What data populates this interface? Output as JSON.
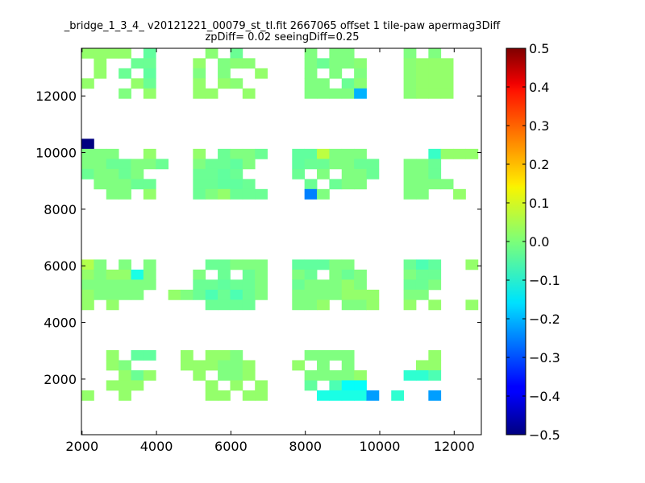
{
  "chart_data": {
    "type": "heatmap",
    "title_lines": [
      "_bridge_1_3_4_ v20121221_00079_st_tl.fit 2667065 offset 1 tile-paw apermag3Diff",
      "zpDiff= 0.02 seeingDiff=0.25"
    ],
    "xlabel": "",
    "ylabel": "",
    "xlim": [
      1983,
      12730
    ],
    "ylim": [
      36,
      13683
    ],
    "cell_width": 333,
    "cell_height": 355,
    "x_ticks": [
      2000,
      4000,
      6000,
      8000,
      10000,
      12000
    ],
    "y_ticks": [
      2000,
      4000,
      6000,
      8000,
      10000,
      12000
    ],
    "colorbar": {
      "colormap": "jet",
      "vmin": -0.5,
      "vmax": 0.5,
      "ticks": [
        "0.5",
        "0.4",
        "0.3",
        "0.2",
        "0.1",
        "0.0",
        "−0.1",
        "−0.2",
        "−0.3",
        "−0.4",
        "−0.5"
      ]
    },
    "cells": [
      [
        2150,
        13510,
        0.02
      ],
      [
        2483,
        13510,
        0.02
      ],
      [
        2816,
        13510,
        0.02
      ],
      [
        3149,
        13510,
        0.02
      ],
      [
        3815,
        13510,
        -0.03
      ],
      [
        5480,
        13510,
        0.01
      ],
      [
        6146,
        13510,
        -0.02
      ],
      [
        8144,
        13510,
        0.0
      ],
      [
        8810,
        13510,
        0.0
      ],
      [
        9143,
        13510,
        0.0
      ],
      [
        10808,
        13510,
        0.0
      ],
      [
        11474,
        13510,
        0.0
      ],
      [
        2483,
        13155,
        0.02
      ],
      [
        3482,
        13155,
        -0.02
      ],
      [
        3815,
        13155,
        -0.02
      ],
      [
        5147,
        13155,
        0.02
      ],
      [
        5813,
        13155,
        0.0
      ],
      [
        6146,
        13155,
        0.01
      ],
      [
        6479,
        13155,
        0.01
      ],
      [
        8144,
        13155,
        0.0
      ],
      [
        8477,
        13155,
        -0.02
      ],
      [
        8810,
        13155,
        0.0
      ],
      [
        9143,
        13155,
        0.0
      ],
      [
        9476,
        13155,
        0.01
      ],
      [
        10808,
        13155,
        0.01
      ],
      [
        11141,
        13155,
        0.02
      ],
      [
        11474,
        13155,
        0.02
      ],
      [
        11807,
        13155,
        0.02
      ],
      [
        2483,
        12800,
        0.02
      ],
      [
        3149,
        12800,
        -0.02
      ],
      [
        3815,
        12800,
        -0.03
      ],
      [
        5147,
        12800,
        0.0
      ],
      [
        5813,
        12800,
        0.0
      ],
      [
        6812,
        12800,
        0.02
      ],
      [
        8144,
        12800,
        0.0
      ],
      [
        8810,
        12800,
        0.0
      ],
      [
        9476,
        12800,
        0.0
      ],
      [
        10808,
        12800,
        0.01
      ],
      [
        11141,
        12800,
        0.02
      ],
      [
        11474,
        12800,
        0.02
      ],
      [
        11807,
        12800,
        0.02
      ],
      [
        2150,
        12445,
        0.02
      ],
      [
        3482,
        12445,
        0.02
      ],
      [
        3815,
        12445,
        -0.02
      ],
      [
        5147,
        12445,
        0.02
      ],
      [
        5813,
        12445,
        0.02
      ],
      [
        6146,
        12445,
        0.01
      ],
      [
        8144,
        12445,
        0.0
      ],
      [
        8477,
        12445,
        0.0
      ],
      [
        9143,
        12445,
        -0.02
      ],
      [
        9476,
        12445,
        0.01
      ],
      [
        10808,
        12445,
        0.01
      ],
      [
        11141,
        12445,
        0.02
      ],
      [
        11474,
        12445,
        0.02
      ],
      [
        11807,
        12445,
        0.02
      ],
      [
        3149,
        12090,
        0.0
      ],
      [
        3815,
        12090,
        0.02
      ],
      [
        5147,
        12090,
        0.02
      ],
      [
        5480,
        12090,
        0.02
      ],
      [
        6479,
        12090,
        0.02
      ],
      [
        8144,
        12090,
        0.0
      ],
      [
        8477,
        12090,
        0.0
      ],
      [
        8810,
        12090,
        0.0
      ],
      [
        9143,
        12090,
        0.0
      ],
      [
        9476,
        12090,
        -0.2
      ],
      [
        10808,
        12090,
        0.01
      ],
      [
        11141,
        12090,
        0.02
      ],
      [
        11474,
        12090,
        0.02
      ],
      [
        11807,
        12090,
        0.02
      ],
      [
        2150,
        10310,
        -0.5
      ],
      [
        2150,
        9955,
        0.0
      ],
      [
        2483,
        9955,
        0.0
      ],
      [
        2816,
        9955,
        0.0
      ],
      [
        3815,
        9955,
        0.02
      ],
      [
        5147,
        9955,
        0.02
      ],
      [
        5813,
        9955,
        -0.02
      ],
      [
        6146,
        9955,
        0.0
      ],
      [
        6479,
        9955,
        0.0
      ],
      [
        6812,
        9955,
        -0.02
      ],
      [
        7811,
        9955,
        -0.03
      ],
      [
        8144,
        9955,
        -0.03
      ],
      [
        8477,
        9955,
        0.06
      ],
      [
        8810,
        9955,
        0.0
      ],
      [
        9143,
        9955,
        0.0
      ],
      [
        9476,
        9955,
        0.0
      ],
      [
        11474,
        9955,
        -0.07
      ],
      [
        11807,
        9955,
        0.02
      ],
      [
        12140,
        9955,
        0.02
      ],
      [
        12473,
        9955,
        0.02
      ],
      [
        2150,
        9600,
        0.0
      ],
      [
        2483,
        9600,
        0.0
      ],
      [
        2816,
        9600,
        -0.02
      ],
      [
        3149,
        9600,
        -0.02
      ],
      [
        3482,
        9600,
        0.0
      ],
      [
        3815,
        9600,
        0.0
      ],
      [
        4148,
        9600,
        -0.02
      ],
      [
        5147,
        9600,
        0.0
      ],
      [
        5480,
        9600,
        -0.02
      ],
      [
        5813,
        9600,
        -0.02
      ],
      [
        6146,
        9600,
        -0.03
      ],
      [
        6479,
        9600,
        0.0
      ],
      [
        7811,
        9600,
        -0.03
      ],
      [
        8144,
        9600,
        -0.02
      ],
      [
        8477,
        9600,
        -0.02
      ],
      [
        8810,
        9600,
        0.0
      ],
      [
        9143,
        9600,
        0.0
      ],
      [
        9476,
        9600,
        -0.02
      ],
      [
        9809,
        9600,
        -0.02
      ],
      [
        10808,
        9600,
        0.0
      ],
      [
        11141,
        9600,
        0.0
      ],
      [
        11474,
        9600,
        -0.02
      ],
      [
        2150,
        9245,
        -0.02
      ],
      [
        2483,
        9245,
        0.0
      ],
      [
        2816,
        9245,
        0.0
      ],
      [
        3149,
        9245,
        -0.02
      ],
      [
        3482,
        9245,
        0.0
      ],
      [
        5147,
        9245,
        -0.02
      ],
      [
        5480,
        9245,
        -0.02
      ],
      [
        5813,
        9245,
        -0.03
      ],
      [
        6146,
        9245,
        -0.02
      ],
      [
        7811,
        9245,
        -0.02
      ],
      [
        8477,
        9245,
        0.0
      ],
      [
        9143,
        9245,
        0.0
      ],
      [
        9476,
        9245,
        0.0
      ],
      [
        9809,
        9245,
        -0.02
      ],
      [
        10808,
        9245,
        0.0
      ],
      [
        11141,
        9245,
        0.0
      ],
      [
        11474,
        9245,
        -0.02
      ],
      [
        2483,
        8890,
        0.0
      ],
      [
        2816,
        8890,
        0.0
      ],
      [
        3149,
        8890,
        0.0
      ],
      [
        3482,
        8890,
        -0.02
      ],
      [
        3815,
        8890,
        -0.02
      ],
      [
        5147,
        8890,
        -0.02
      ],
      [
        5480,
        8890,
        -0.02
      ],
      [
        5813,
        8890,
        -0.03
      ],
      [
        6146,
        8890,
        -0.03
      ],
      [
        6479,
        8890,
        -0.02
      ],
      [
        8144,
        8890,
        -0.02
      ],
      [
        8810,
        8890,
        -0.02
      ],
      [
        9143,
        8890,
        0.0
      ],
      [
        9476,
        8890,
        0.0
      ],
      [
        10808,
        8890,
        0.0
      ],
      [
        11141,
        8890,
        0.0
      ],
      [
        11474,
        8890,
        0.0
      ],
      [
        11807,
        8890,
        0.0
      ],
      [
        2816,
        8535,
        0.0
      ],
      [
        3149,
        8535,
        0.0
      ],
      [
        3815,
        8535,
        0.02
      ],
      [
        5147,
        8535,
        -0.02
      ],
      [
        5480,
        8535,
        0.0
      ],
      [
        5813,
        8535,
        0.02
      ],
      [
        6146,
        8535,
        -0.02
      ],
      [
        6479,
        8535,
        -0.02
      ],
      [
        6812,
        8535,
        -0.02
      ],
      [
        8144,
        8535,
        -0.25
      ],
      [
        8477,
        8535,
        0.0
      ],
      [
        10808,
        8535,
        0.0
      ],
      [
        11141,
        8535,
        0.0
      ],
      [
        12140,
        8535,
        0.02
      ],
      [
        2150,
        6045,
        0.05
      ],
      [
        2483,
        6045,
        0.0
      ],
      [
        3149,
        6045,
        0.0
      ],
      [
        3815,
        6045,
        0.0
      ],
      [
        5480,
        6045,
        -0.02
      ],
      [
        5813,
        6045,
        -0.02
      ],
      [
        6146,
        6045,
        0.0
      ],
      [
        6479,
        6045,
        0.0
      ],
      [
        6812,
        6045,
        0.0
      ],
      [
        7811,
        6045,
        -0.03
      ],
      [
        8144,
        6045,
        -0.03
      ],
      [
        8477,
        6045,
        -0.03
      ],
      [
        8810,
        6045,
        0.0
      ],
      [
        9143,
        6045,
        0.0
      ],
      [
        10808,
        6045,
        -0.02
      ],
      [
        11141,
        6045,
        -0.05
      ],
      [
        11474,
        6045,
        -0.03
      ],
      [
        12473,
        6045,
        0.02
      ],
      [
        2150,
        5690,
        0.02
      ],
      [
        2483,
        5690,
        0.0
      ],
      [
        2816,
        5690,
        0.02
      ],
      [
        3149,
        5690,
        0.02
      ],
      [
        3482,
        5690,
        -0.1
      ],
      [
        3815,
        5690,
        0.0
      ],
      [
        5147,
        5690,
        0.0
      ],
      [
        5813,
        5690,
        -0.02
      ],
      [
        6479,
        5690,
        -0.02
      ],
      [
        6812,
        5690,
        0.0
      ],
      [
        7811,
        5690,
        0.0
      ],
      [
        8144,
        5690,
        -0.02
      ],
      [
        8810,
        5690,
        0.0
      ],
      [
        9143,
        5690,
        -0.02
      ],
      [
        9476,
        5690,
        0.0
      ],
      [
        10808,
        5690,
        0.0
      ],
      [
        11141,
        5690,
        -0.02
      ],
      [
        11474,
        5690,
        -0.02
      ],
      [
        2150,
        5335,
        0.0
      ],
      [
        2483,
        5335,
        0.0
      ],
      [
        2816,
        5335,
        0.0
      ],
      [
        3149,
        5335,
        0.0
      ],
      [
        3482,
        5335,
        0.0
      ],
      [
        3815,
        5335,
        0.0
      ],
      [
        5147,
        5335,
        -0.02
      ],
      [
        5480,
        5335,
        -0.02
      ],
      [
        5813,
        5335,
        -0.03
      ],
      [
        6146,
        5335,
        -0.02
      ],
      [
        6479,
        5335,
        -0.02
      ],
      [
        6812,
        5335,
        0.0
      ],
      [
        7811,
        5335,
        -0.02
      ],
      [
        8144,
        5335,
        0.0
      ],
      [
        8477,
        5335,
        0.0
      ],
      [
        8810,
        5335,
        0.0
      ],
      [
        9143,
        5335,
        0.02
      ],
      [
        9476,
        5335,
        0.0
      ],
      [
        10808,
        5335,
        -0.02
      ],
      [
        11141,
        5335,
        -0.02
      ],
      [
        11474,
        5335,
        0.0
      ],
      [
        2150,
        4980,
        0.02
      ],
      [
        2483,
        4980,
        0.0
      ],
      [
        2816,
        4980,
        0.0
      ],
      [
        3149,
        4980,
        0.0
      ],
      [
        3482,
        4980,
        0.0
      ],
      [
        4481,
        4980,
        0.02
      ],
      [
        4814,
        4980,
        0.0
      ],
      [
        5147,
        4980,
        -0.02
      ],
      [
        5480,
        4980,
        -0.05
      ],
      [
        5813,
        4980,
        -0.02
      ],
      [
        6146,
        4980,
        -0.05
      ],
      [
        6479,
        4980,
        -0.02
      ],
      [
        6812,
        4980,
        0.0
      ],
      [
        7811,
        4980,
        0.0
      ],
      [
        8144,
        4980,
        0.0
      ],
      [
        8477,
        4980,
        0.0
      ],
      [
        8810,
        4980,
        0.0
      ],
      [
        9143,
        4980,
        0.02
      ],
      [
        9476,
        4980,
        0.02
      ],
      [
        9809,
        4980,
        0.02
      ],
      [
        10808,
        4980,
        0.0
      ],
      [
        11141,
        4980,
        0.0
      ],
      [
        2150,
        4625,
        0.02
      ],
      [
        2816,
        4625,
        0.02
      ],
      [
        5480,
        4625,
        -0.02
      ],
      [
        5813,
        4625,
        -0.02
      ],
      [
        6146,
        4625,
        -0.02
      ],
      [
        6479,
        4625,
        -0.02
      ],
      [
        7811,
        4625,
        0.0
      ],
      [
        8144,
        4625,
        0.0
      ],
      [
        8477,
        4625,
        0.02
      ],
      [
        9143,
        4625,
        0.0
      ],
      [
        9476,
        4625,
        0.0
      ],
      [
        9809,
        4625,
        0.02
      ],
      [
        10808,
        4625,
        0.02
      ],
      [
        11474,
        4625,
        0.02
      ],
      [
        12473,
        4625,
        0.02
      ],
      [
        2816,
        2845,
        0.02
      ],
      [
        3482,
        2845,
        -0.03
      ],
      [
        3815,
        2845,
        -0.03
      ],
      [
        4814,
        2845,
        0.02
      ],
      [
        5480,
        2845,
        0.02
      ],
      [
        5813,
        2845,
        0.02
      ],
      [
        6146,
        2845,
        0.0
      ],
      [
        8144,
        2845,
        0.0
      ],
      [
        8477,
        2845,
        0.0
      ],
      [
        8810,
        2845,
        0.0
      ],
      [
        9143,
        2845,
        0.0
      ],
      [
        11474,
        2845,
        0.02
      ],
      [
        2816,
        2490,
        0.02
      ],
      [
        3149,
        2490,
        0.0
      ],
      [
        4814,
        2490,
        0.02
      ],
      [
        5147,
        2490,
        0.02
      ],
      [
        5480,
        2490,
        0.02
      ],
      [
        5813,
        2490,
        0.0
      ],
      [
        6146,
        2490,
        0.0
      ],
      [
        6479,
        2490,
        0.02
      ],
      [
        7811,
        2490,
        0.02
      ],
      [
        8477,
        2490,
        0.0
      ],
      [
        9143,
        2490,
        0.0
      ],
      [
        11141,
        2490,
        0.02
      ],
      [
        11474,
        2490,
        0.02
      ],
      [
        3149,
        2135,
        0.02
      ],
      [
        3482,
        2135,
        -0.02
      ],
      [
        3815,
        2135,
        0.02
      ],
      [
        5147,
        2135,
        0.02
      ],
      [
        5813,
        2135,
        0.0
      ],
      [
        6146,
        2135,
        0.0
      ],
      [
        6479,
        2135,
        0.02
      ],
      [
        8144,
        2135,
        0.0
      ],
      [
        8477,
        2135,
        0.0
      ],
      [
        8810,
        2135,
        0.0
      ],
      [
        9143,
        2135,
        0.0
      ],
      [
        9476,
        2135,
        0.02
      ],
      [
        10808,
        2135,
        -0.08
      ],
      [
        11141,
        2135,
        -0.08
      ],
      [
        11474,
        2135,
        -0.05
      ],
      [
        2816,
        1780,
        0.02
      ],
      [
        3149,
        1780,
        0.02
      ],
      [
        3482,
        1780,
        0.02
      ],
      [
        5480,
        1780,
        0.02
      ],
      [
        6146,
        1780,
        0.02
      ],
      [
        6812,
        1780,
        0.02
      ],
      [
        8144,
        1780,
        -0.03
      ],
      [
        8810,
        1780,
        -0.05
      ],
      [
        9143,
        1780,
        -0.12
      ],
      [
        9476,
        1780,
        -0.12
      ],
      [
        2150,
        1425,
        0.02
      ],
      [
        3149,
        1425,
        0.02
      ],
      [
        5480,
        1425,
        0.02
      ],
      [
        5813,
        1425,
        0.02
      ],
      [
        6479,
        1425,
        0.02
      ],
      [
        6812,
        1425,
        0.02
      ],
      [
        8477,
        1425,
        -0.1
      ],
      [
        8810,
        1425,
        -0.1
      ],
      [
        9143,
        1425,
        -0.1
      ],
      [
        9476,
        1425,
        -0.1
      ],
      [
        9809,
        1425,
        -0.22
      ],
      [
        10475,
        1425,
        -0.08
      ],
      [
        11474,
        1425,
        -0.22
      ]
    ]
  }
}
